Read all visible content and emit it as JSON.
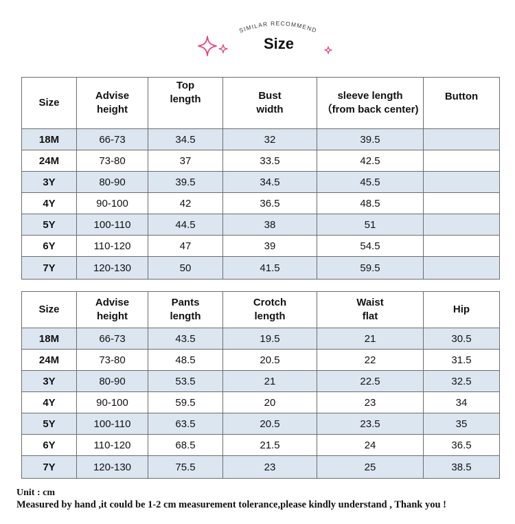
{
  "header": {
    "arc_text": "SIMILAR RECOMMEND",
    "title": "Size"
  },
  "top_table": {
    "headers": [
      [
        "Size"
      ],
      [
        "Advise",
        "height"
      ],
      [
        "Top",
        "length"
      ],
      [
        "Bust",
        "width"
      ],
      [
        "sleeve length",
        "（from back center)"
      ],
      [
        "Button"
      ]
    ],
    "rows": [
      [
        "18M",
        "66-73",
        "34.5",
        "32",
        "39.5",
        ""
      ],
      [
        "24M",
        "73-80",
        "37",
        "33.5",
        "42.5",
        ""
      ],
      [
        "3Y",
        "80-90",
        "39.5",
        "34.5",
        "45.5",
        ""
      ],
      [
        "4Y",
        "90-100",
        "42",
        "36.5",
        "48.5",
        ""
      ],
      [
        "5Y",
        "100-110",
        "44.5",
        "38",
        "51",
        ""
      ],
      [
        "6Y",
        "110-120",
        "47",
        "39",
        "54.5",
        ""
      ],
      [
        "7Y",
        "120-130",
        "50",
        "41.5",
        "59.5",
        ""
      ]
    ]
  },
  "bottom_table": {
    "headers": [
      [
        "Size"
      ],
      [
        "Advise",
        "height"
      ],
      [
        "Pants",
        "length"
      ],
      [
        "Crotch",
        "length"
      ],
      [
        "Waist",
        "flat"
      ],
      [
        "Hip"
      ]
    ],
    "rows": [
      [
        "18M",
        "66-73",
        "43.5",
        "19.5",
        "21",
        "30.5"
      ],
      [
        "24M",
        "73-80",
        "48.5",
        "20.5",
        "22",
        "31.5"
      ],
      [
        "3Y",
        "80-90",
        "53.5",
        "21",
        "22.5",
        "32.5"
      ],
      [
        "4Y",
        "90-100",
        "59.5",
        "20",
        "23",
        "34"
      ],
      [
        "5Y",
        "100-110",
        "63.5",
        "20.5",
        "23.5",
        "35"
      ],
      [
        "6Y",
        "110-120",
        "68.5",
        "21.5",
        "24",
        "36.5"
      ],
      [
        "7Y",
        "120-130",
        "75.5",
        "23",
        "25",
        "38.5"
      ]
    ]
  },
  "footer": {
    "unit": "Unit : cm",
    "note": "Measured by hand ,it could be 1-2 cm measurement tolerance,please kindly understand , Thank you !"
  },
  "colors": {
    "row_shade": "#dce6f1",
    "border": "#6b6b6b",
    "sparkle": "#e8457a"
  },
  "icons": [
    "sparkle-icon-large",
    "sparkle-icon-small",
    "sparkle-icon-right"
  ]
}
